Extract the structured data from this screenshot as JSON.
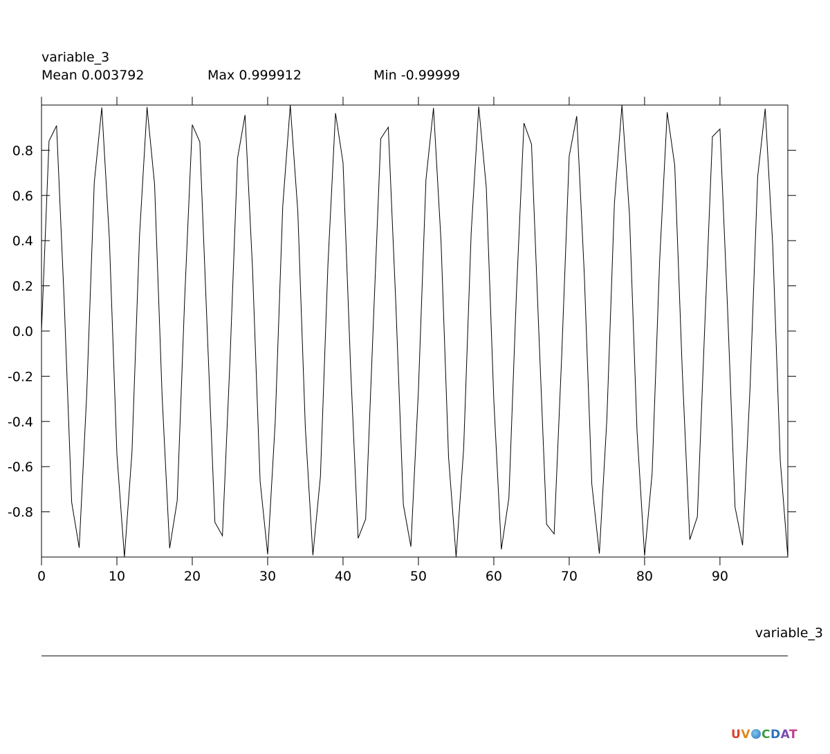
{
  "header": {
    "variable_name": "variable_3",
    "mean_label": "Mean 0.003792",
    "max_label": "Max 0.999912",
    "min_label": "Min -0.99999"
  },
  "logo_text": "UV-CDAT",
  "chart_data": {
    "type": "line",
    "title": "variable_3",
    "xlabel": "variable_3",
    "ylabel": "",
    "xlim": [
      0,
      99
    ],
    "ylim": [
      -0.99999,
      0.999912
    ],
    "x_ticks": [
      0,
      10,
      20,
      30,
      40,
      50,
      60,
      70,
      80,
      90
    ],
    "y_ticks": [
      -0.8,
      -0.6,
      -0.4,
      -0.2,
      0.0,
      0.2,
      0.4,
      0.6,
      0.8
    ],
    "y_tick_labels": [
      "-0.8",
      "-0.6",
      "-0.4",
      "-0.2",
      "0.0",
      "0.2",
      "0.4",
      "0.6",
      "0.8"
    ],
    "grid": false,
    "line_color": "#000000",
    "series": [
      {
        "x": [
          0,
          1,
          2,
          3,
          4,
          5,
          6,
          7,
          8,
          9,
          10,
          11,
          12,
          13,
          14,
          15,
          16,
          17,
          18,
          19,
          20,
          21,
          22,
          23,
          24,
          25,
          26,
          27,
          28,
          29,
          30,
          31,
          32,
          33,
          34,
          35,
          36,
          37,
          38,
          39,
          40,
          41,
          42,
          43,
          44,
          45,
          46,
          47,
          48,
          49,
          50,
          51,
          52,
          53,
          54,
          55,
          56,
          57,
          58,
          59,
          60,
          61,
          62,
          63,
          64,
          65,
          66,
          67,
          68,
          69,
          70,
          71,
          72,
          73,
          74,
          75,
          76,
          77,
          78,
          79,
          80,
          81,
          82,
          83,
          84,
          85,
          86,
          87,
          88,
          89,
          90,
          91,
          92,
          93,
          94,
          95,
          96,
          97,
          98,
          99
        ],
        "values": [
          0.0,
          0.841,
          0.909,
          0.141,
          -0.757,
          -0.959,
          -0.279,
          0.657,
          0.989,
          0.412,
          -0.544,
          -1.0,
          -0.537,
          0.42,
          0.991,
          0.65,
          -0.288,
          -0.961,
          -0.751,
          0.15,
          0.913,
          0.837,
          -0.009,
          -0.846,
          -0.906,
          -0.132,
          0.763,
          0.956,
          0.271,
          -0.664,
          -0.988,
          -0.404,
          0.551,
          1.0,
          0.529,
          -0.428,
          -0.992,
          -0.644,
          0.296,
          0.964,
          0.745,
          -0.159,
          -0.917,
          -0.832,
          0.018,
          0.851,
          0.902,
          0.124,
          -0.768,
          -0.954,
          -0.262,
          0.67,
          0.987,
          0.396,
          -0.559,
          -1.0,
          -0.521,
          0.436,
          0.993,
          0.637,
          -0.305,
          -0.966,
          -0.739,
          0.167,
          0.92,
          0.827,
          -0.027,
          -0.855,
          -0.898,
          -0.115,
          0.774,
          0.951,
          0.254,
          -0.677,
          -0.985,
          -0.388,
          0.566,
          1.0,
          0.514,
          -0.444,
          -0.994,
          -0.63,
          0.313,
          0.968,
          0.733,
          -0.176,
          -0.923,
          -0.822,
          0.035,
          0.86,
          0.894,
          0.106,
          -0.779,
          -0.948,
          -0.245,
          0.683,
          0.984,
          0.38,
          -0.573,
          -0.999
        ]
      }
    ]
  }
}
